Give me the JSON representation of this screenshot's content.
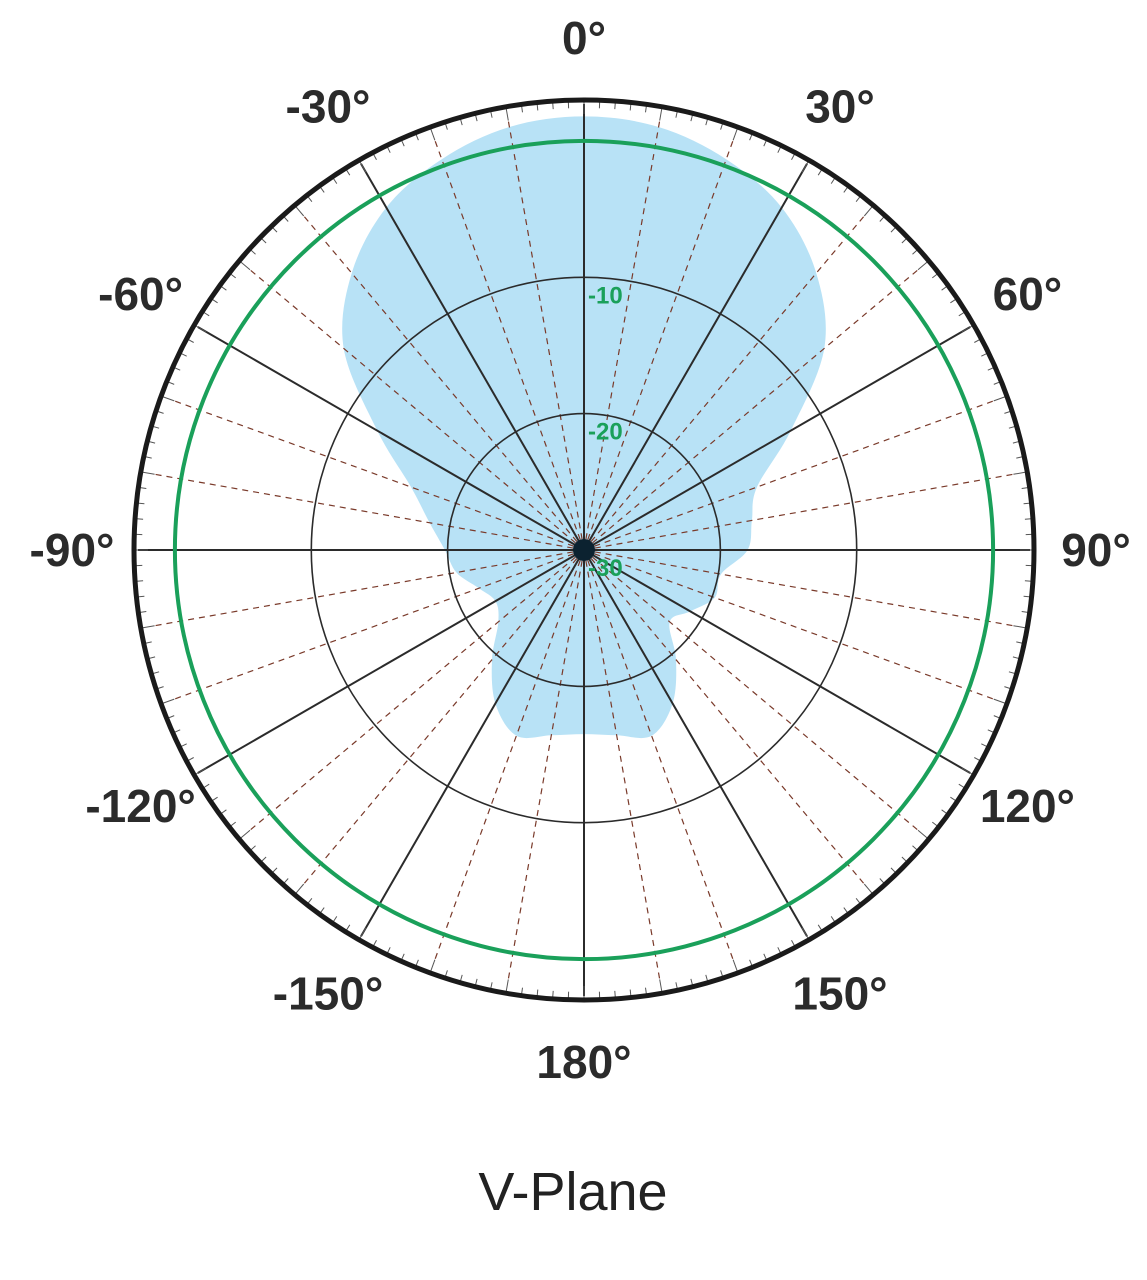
{
  "chart_data": {
    "type": "polar-area",
    "title": "V-Plane",
    "angle_labels": [
      {
        "angle": 0,
        "text": "0°"
      },
      {
        "angle": 30,
        "text": "30°"
      },
      {
        "angle": 60,
        "text": "60°"
      },
      {
        "angle": 90,
        "text": "90°"
      },
      {
        "angle": 120,
        "text": "120°"
      },
      {
        "angle": 150,
        "text": "150°"
      },
      {
        "angle": 180,
        "text": "180°"
      },
      {
        "angle": -150,
        "text": "-150°"
      },
      {
        "angle": -120,
        "text": "-120°"
      },
      {
        "angle": -90,
        "text": "-90°"
      },
      {
        "angle": -60,
        "text": "-60°"
      },
      {
        "angle": -30,
        "text": "-30°"
      }
    ],
    "radial_unit": "dB",
    "radial_range": [
      -30,
      3
    ],
    "ring_levels": [
      -20,
      -10
    ],
    "ring_labels": [
      {
        "value": -30,
        "text": "-30"
      },
      {
        "value": -20,
        "text": "-20"
      },
      {
        "value": -10,
        "text": "-10"
      }
    ],
    "reference_circle_db": 0,
    "pattern": {
      "angles": [
        -180,
        -170,
        -160,
        -150,
        -140,
        -130,
        -120,
        -110,
        -100,
        -90,
        -80,
        -70,
        -60,
        -50,
        -40,
        -30,
        -20,
        -10,
        0,
        10,
        20,
        30,
        40,
        50,
        60,
        70,
        80,
        90,
        100,
        110,
        120,
        130,
        140,
        150,
        160,
        170
      ],
      "gain_db": [
        -16.5,
        -16.2,
        -15.5,
        -17.0,
        -19.5,
        -21.8,
        -22.5,
        -21.8,
        -20.5,
        -19.8,
        -18.5,
        -16.5,
        -12.5,
        -7.0,
        -3.5,
        -1.0,
        0.5,
        1.5,
        1.8,
        1.5,
        0.5,
        -1.0,
        -3.5,
        -7.0,
        -12.5,
        -16.5,
        -17.5,
        -18.0,
        -19.8,
        -19.8,
        -21.0,
        -21.8,
        -19.5,
        -17.0,
        -15.5,
        -16.2
      ]
    },
    "colors": {
      "pattern_fill": "#b8e2f6",
      "reference_circle": "#1aa05a",
      "outer_circle": "#1a1a1a",
      "grid": "#2b2b2b",
      "ring_label": "#1aa05a"
    },
    "grid": true
  }
}
